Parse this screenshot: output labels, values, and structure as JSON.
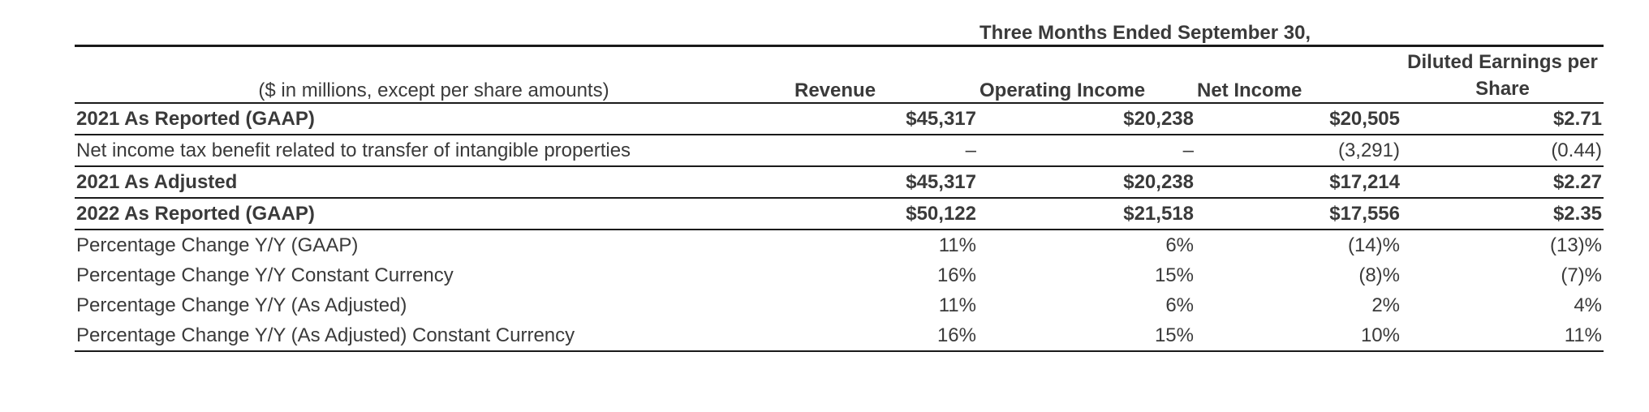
{
  "table": {
    "period_header": "Three Months Ended September 30,",
    "units_label": "($ in millions, except per share amounts)",
    "columns": [
      "Revenue",
      "Operating Income",
      "Net Income",
      "Diluted Earnings per Share"
    ],
    "rows": [
      {
        "label": "2021 As Reported (GAAP)",
        "values": [
          "$45,317",
          "$20,238",
          "$20,505",
          "$2.71"
        ]
      },
      {
        "label": "Net income tax benefit related to transfer of intangible properties",
        "values": [
          "–",
          "–",
          "(3,291)",
          "(0.44)"
        ]
      },
      {
        "label": "2021 As Adjusted",
        "values": [
          "$45,317",
          "$20,238",
          "$17,214",
          "$2.27"
        ]
      },
      {
        "label": "2022 As Reported (GAAP)",
        "values": [
          "$50,122",
          "$21,518",
          "$17,556",
          "$2.35"
        ]
      },
      {
        "label": "Percentage Change Y/Y (GAAP)",
        "values": [
          "11%",
          "6%",
          "(14)%",
          "(13)%"
        ]
      },
      {
        "label": "Percentage Change Y/Y Constant Currency",
        "values": [
          "16%",
          "15%",
          "(8)%",
          "(7)%"
        ]
      },
      {
        "label": "Percentage Change Y/Y (As Adjusted)",
        "values": [
          "11%",
          "6%",
          "2%",
          "4%"
        ]
      },
      {
        "label": "Percentage Change Y/Y (As Adjusted) Constant Currency",
        "values": [
          "16%",
          "15%",
          "10%",
          "11%"
        ]
      }
    ]
  }
}
